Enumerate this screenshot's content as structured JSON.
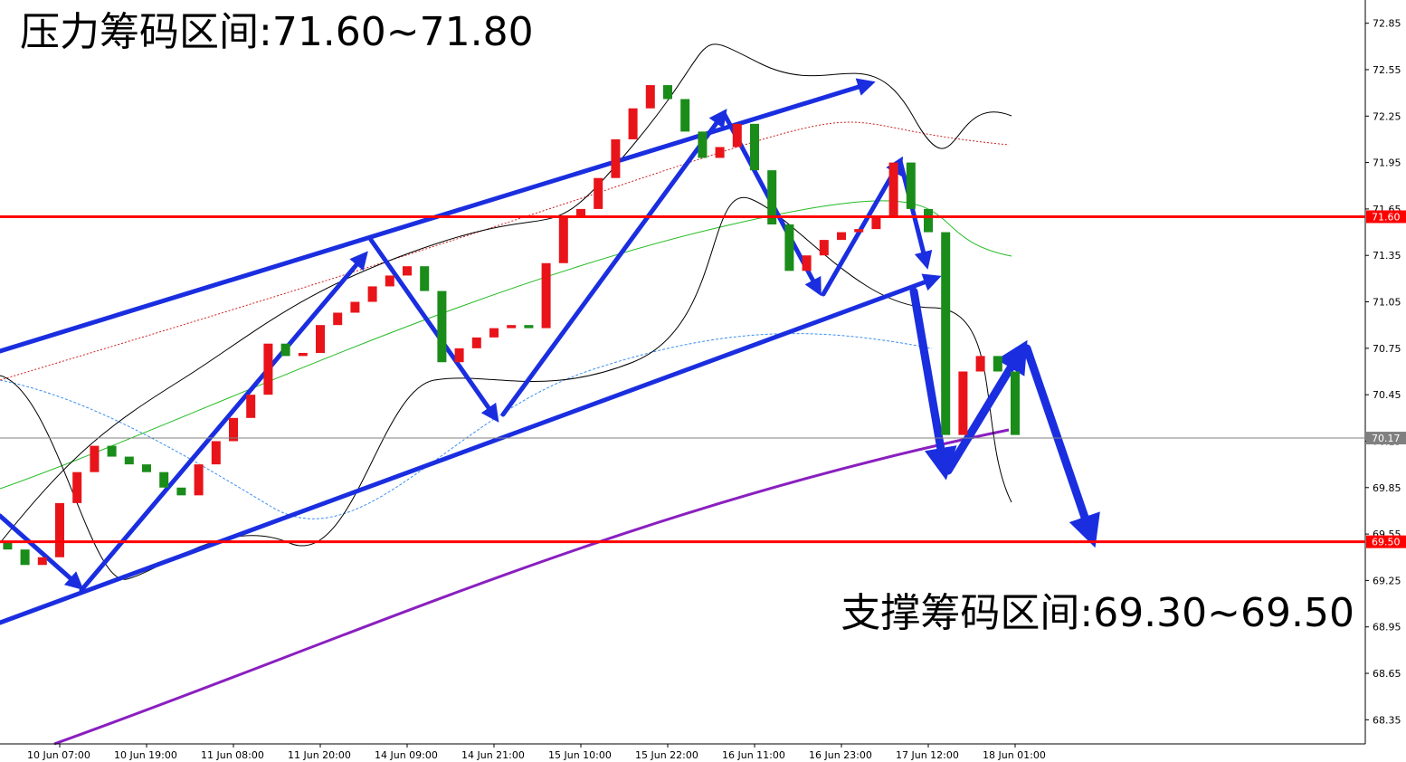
{
  "chart_data": {
    "type": "candlestick",
    "annotations": [
      "压力筹码区间:71.60~71.80",
      "支撑筹码区间:69.30~69.50"
    ],
    "categories": [
      null,
      null,
      null,
      "10 Jun 07:00",
      null,
      null,
      null,
      null,
      "10 Jun 19:00",
      null,
      null,
      null,
      null,
      "11 Jun 08:00",
      null,
      null,
      null,
      null,
      "11 Jun 20:00",
      null,
      null,
      null,
      null,
      "14 Jun 09:00",
      null,
      null,
      null,
      null,
      "14 Jun 21:00",
      null,
      null,
      null,
      null,
      "15 Jun 10:00",
      null,
      null,
      null,
      null,
      "15 Jun 22:00",
      null,
      null,
      null,
      null,
      "16 Jun 11:00",
      null,
      null,
      null,
      null,
      "16 Jun 23:00",
      null,
      null,
      null,
      null,
      "17 Jun 12:00",
      null,
      null,
      null,
      null,
      "18 Jun 01:00"
    ],
    "open": [
      69.5,
      69.45,
      69.35,
      69.4,
      69.75,
      69.95,
      70.12,
      70.05,
      70.0,
      69.95,
      69.85,
      69.8,
      70.0,
      70.15,
      70.3,
      70.45,
      70.78,
      70.7,
      70.72,
      70.9,
      70.98,
      71.05,
      71.15,
      71.22,
      71.28,
      71.12,
      70.66,
      70.75,
      70.82,
      70.88,
      70.9,
      70.88,
      71.3,
      71.6,
      71.65,
      71.85,
      72.1,
      72.3,
      72.45,
      72.36,
      72.15,
      71.98,
      72.05,
      72.2,
      71.9,
      71.55,
      71.25,
      71.35,
      71.45,
      71.5,
      71.52,
      71.6,
      71.95,
      71.65,
      71.5,
      70.19,
      70.6,
      70.7,
      70.6
    ],
    "close": [
      69.45,
      69.35,
      69.4,
      69.75,
      69.95,
      70.12,
      70.05,
      70.0,
      69.95,
      69.85,
      69.8,
      70.0,
      70.15,
      70.3,
      70.45,
      70.78,
      70.7,
      70.72,
      70.9,
      70.98,
      71.05,
      71.15,
      71.22,
      71.28,
      71.12,
      70.66,
      70.75,
      70.82,
      70.88,
      70.9,
      70.88,
      71.3,
      71.6,
      71.65,
      71.85,
      72.1,
      72.3,
      72.45,
      72.36,
      72.15,
      71.98,
      72.05,
      72.2,
      71.9,
      71.55,
      71.25,
      71.35,
      71.45,
      71.5,
      71.52,
      71.6,
      71.95,
      71.65,
      71.5,
      70.19,
      70.6,
      70.7,
      70.6,
      70.19
    ],
    "up_color": "#e8141a",
    "down_color": "#1a8c1a",
    "ylim": [
      68.2,
      73.0
    ],
    "yticks": [
      68.35,
      68.65,
      68.95,
      69.25,
      69.55,
      69.85,
      70.15,
      70.45,
      70.75,
      71.05,
      71.35,
      71.65,
      71.95,
      72.25,
      72.55,
      72.85
    ],
    "levels": [
      {
        "value": 71.6,
        "label": "71.60",
        "color": "#ff0000"
      },
      {
        "value": 69.5,
        "label": "69.50",
        "color": "#ff0000"
      },
      {
        "value": 70.17,
        "label": "70.17",
        "color": "#808080"
      }
    ]
  }
}
